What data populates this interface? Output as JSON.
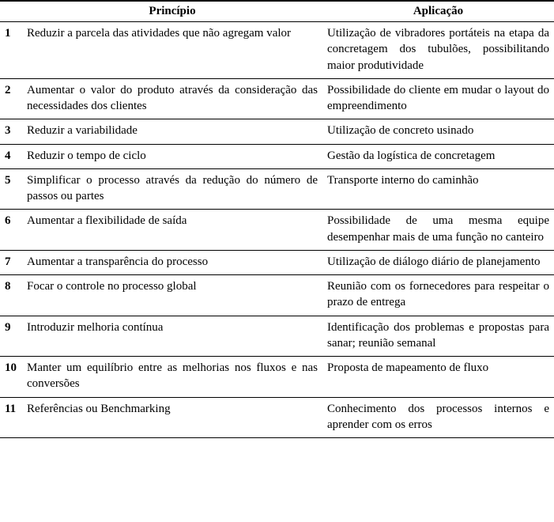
{
  "table": {
    "header": {
      "principio": "Princípio",
      "aplicacao": "Aplicação"
    },
    "rows": [
      {
        "n": "1",
        "principio": "Reduzir a parcela das atividades que não agregam valor",
        "aplicacao": "Utilização de vibradores portáteis na etapa da concretagem dos tubulões, possibilitando maior produtividade"
      },
      {
        "n": "2",
        "principio": "Aumentar o valor do produto através da consideração das necessidades dos clientes",
        "aplicacao": "Possibilidade do cliente em mudar o layout do empreendimento"
      },
      {
        "n": "3",
        "principio": "Reduzir a variabilidade",
        "aplicacao": "Utilização de concreto usinado"
      },
      {
        "n": "4",
        "principio": "Reduzir o tempo de ciclo",
        "aplicacao": "Gestão da logística de concretagem"
      },
      {
        "n": "5",
        "principio": "Simplificar o processo através da redução do número de passos ou partes",
        "aplicacao": "Transporte interno do caminhão"
      },
      {
        "n": "6",
        "principio": "Aumentar a flexibilidade de saída",
        "aplicacao": "Possibilidade de uma mesma equipe desempenhar mais de uma função no canteiro"
      },
      {
        "n": "7",
        "principio": "Aumentar a transparência do processo",
        "aplicacao": "Utilização de diálogo diário de planejamento"
      },
      {
        "n": "8",
        "principio": "Focar o controle no processo global",
        "aplicacao": "Reunião com os fornecedores para respeitar o prazo de entrega"
      },
      {
        "n": "9",
        "principio": "Introduzir melhoria contínua",
        "aplicacao": "Identificação dos problemas e propostas para sanar; reunião semanal"
      },
      {
        "n": "10",
        "principio": "Manter um equilíbrio entre as melhorias nos fluxos e nas conversões",
        "aplicacao": "Proposta de mapeamento de fluxo"
      },
      {
        "n": "11",
        "principio": "Referências ou Benchmarking",
        "aplicacao": "Conhecimento dos processos internos e aprender com os erros"
      }
    ]
  }
}
